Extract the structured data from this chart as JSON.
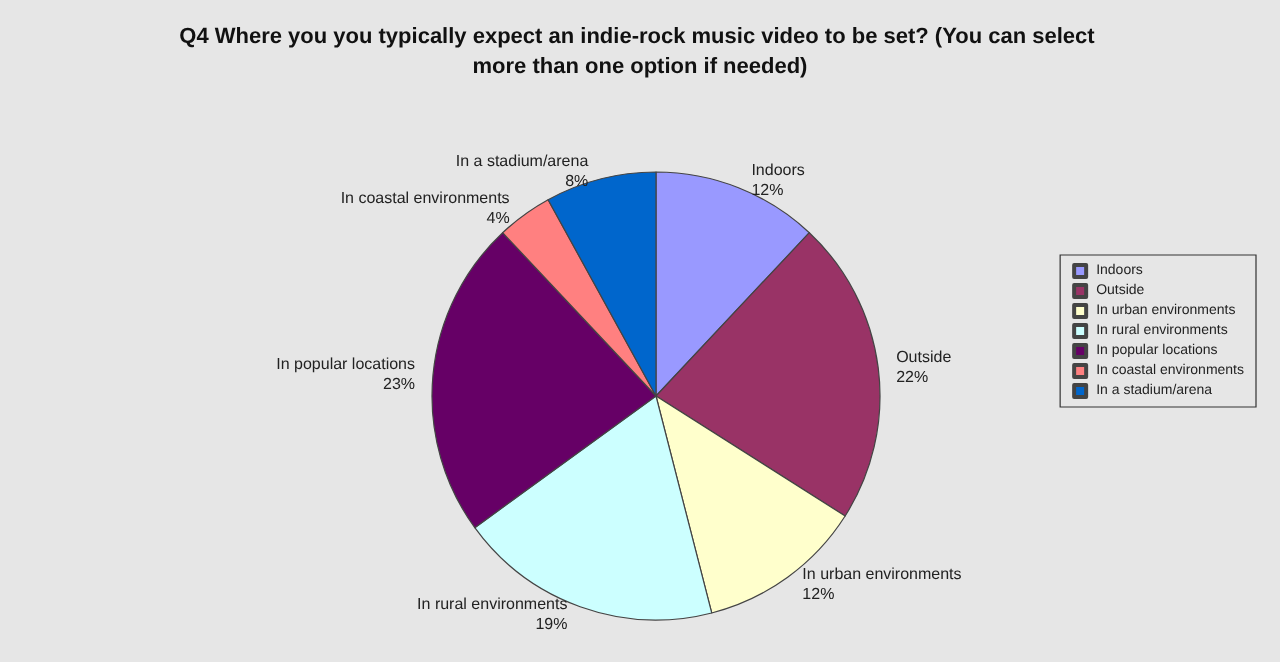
{
  "chart_data": {
    "type": "pie",
    "title": "Q4 Where you you typically expect an indie-rock music video to be set? (You can select more than one option if needed)",
    "categories": [
      "Indoors",
      "Outside",
      "In urban environments",
      "In rural environments",
      "In popular locations",
      "In coastal environments",
      "In a stadium/arena"
    ],
    "values": [
      12,
      22,
      12,
      19,
      23,
      4,
      8
    ],
    "value_labels": [
      "12%",
      "22%",
      "12%",
      "19%",
      "23%",
      "4%",
      "8%"
    ],
    "colors": [
      "#9999ff",
      "#993366",
      "#ffffcc",
      "#ccffff",
      "#660066",
      "#ff8080",
      "#0066cc"
    ],
    "legend": "right"
  }
}
